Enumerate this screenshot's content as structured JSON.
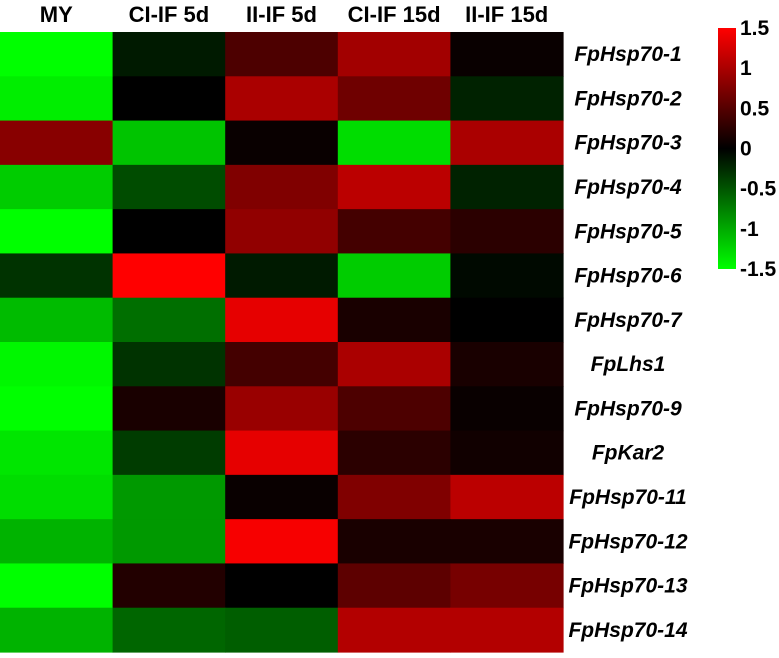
{
  "chart_data": {
    "type": "heatmap",
    "columns": [
      "MY",
      "CI-IF 5d",
      "II-IF 5d",
      "CI-IF 15d",
      "II-IF 15d"
    ],
    "rows": [
      "FpHsp70-1",
      "FpHsp70-2",
      "FpHsp70-3",
      "FpHsp70-4",
      "FpHsp70-5",
      "FpHsp70-6",
      "FpHsp70-7",
      "FpLhs1",
      "FpHsp70-9",
      "FpKar2",
      "FpHsp70-11",
      "FpHsp70-12",
      "FpHsp70-13",
      "FpHsp70-14"
    ],
    "values": [
      [
        -1.5,
        -0.15,
        0.45,
        0.95,
        0.05
      ],
      [
        -1.4,
        0.0,
        1.0,
        0.65,
        -0.2
      ],
      [
        0.8,
        -1.15,
        0.05,
        -1.3,
        1.0
      ],
      [
        -1.2,
        -0.45,
        0.75,
        1.1,
        -0.2
      ],
      [
        -1.6,
        0.0,
        0.85,
        0.4,
        0.25
      ],
      [
        -0.3,
        1.6,
        -0.15,
        -1.2,
        -0.05
      ],
      [
        -1.1,
        -0.65,
        1.35,
        0.15,
        0.0
      ],
      [
        -1.45,
        -0.3,
        0.4,
        1.0,
        0.15
      ],
      [
        -1.65,
        0.15,
        0.9,
        0.45,
        0.05
      ],
      [
        -1.35,
        -0.35,
        1.35,
        0.25,
        0.1
      ],
      [
        -1.3,
        -0.9,
        0.05,
        0.75,
        1.1
      ],
      [
        -1.05,
        -0.9,
        1.45,
        0.15,
        0.15
      ],
      [
        -1.65,
        0.2,
        0.0,
        0.55,
        0.7
      ],
      [
        -1.05,
        -0.6,
        -0.55,
        1.05,
        1.05
      ]
    ],
    "color_scale": {
      "min": -1.5,
      "max": 1.5,
      "low_color": "#00ff00",
      "mid_color": "#000000",
      "high_color": "#ff0000"
    },
    "legend_ticks": [
      "1.5",
      "1",
      "0.5",
      "0",
      "-0.5",
      "-1",
      "-1.5"
    ]
  }
}
